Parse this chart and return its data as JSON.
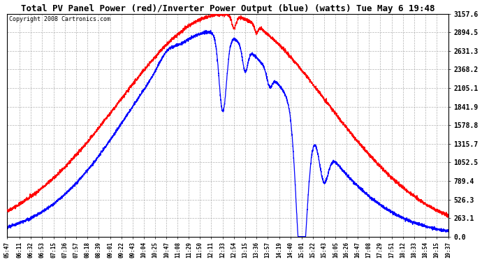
{
  "title": "Total PV Panel Power (red)/Inverter Power Output (blue) (watts) Tue May 6 19:48",
  "copyright": "Copyright 2008 Cartronics.com",
  "fig_bg": "#ffffff",
  "plot_bg": "#ffffff",
  "grid_color": "#aaaaaa",
  "red_color": "#ff0000",
  "blue_color": "#0000ff",
  "text_color": "#000000",
  "copyright_color": "#000000",
  "ytick_vals": [
    0.0,
    263.1,
    526.3,
    789.4,
    1052.5,
    1315.7,
    1578.8,
    1841.9,
    2105.1,
    2368.2,
    2631.3,
    2894.5,
    3157.6
  ],
  "ymax": 3157.6,
  "ymin": 0.0,
  "xtick_labels": [
    "05:47",
    "06:11",
    "06:32",
    "06:53",
    "07:15",
    "07:36",
    "07:57",
    "08:18",
    "08:39",
    "09:01",
    "09:22",
    "09:43",
    "10:04",
    "10:25",
    "10:47",
    "11:08",
    "11:29",
    "11:50",
    "12:11",
    "12:33",
    "12:54",
    "13:15",
    "13:36",
    "13:57",
    "14:19",
    "14:40",
    "15:01",
    "15:22",
    "15:43",
    "16:05",
    "16:26",
    "16:47",
    "17:08",
    "17:29",
    "17:51",
    "18:12",
    "18:33",
    "18:54",
    "19:15",
    "19:37"
  ],
  "title_fontsize": 9,
  "copyright_fontsize": 6,
  "ytick_fontsize": 7,
  "xtick_fontsize": 5.5
}
